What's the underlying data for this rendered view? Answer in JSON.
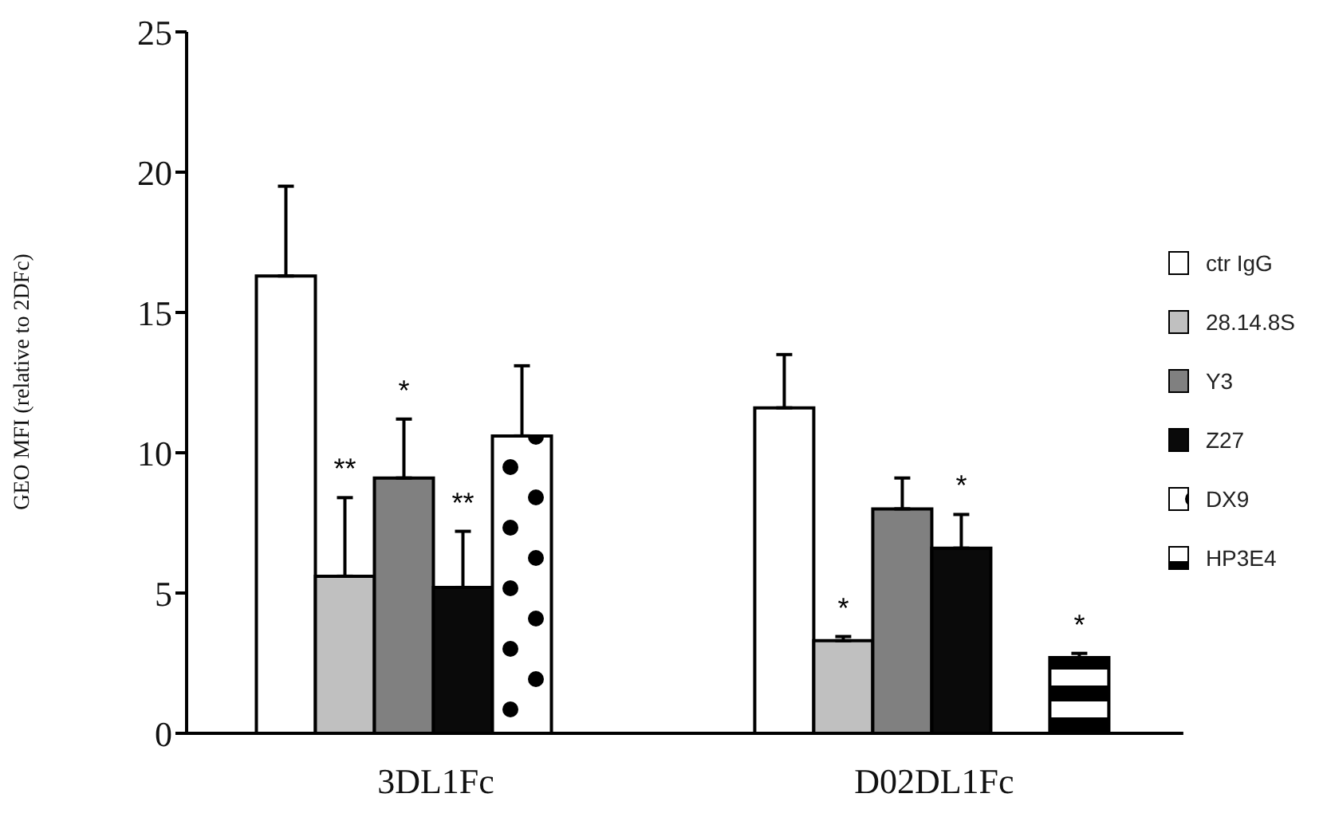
{
  "chart_data": {
    "type": "bar",
    "ylabel": "GEO MFI (relative to 2DFc)",
    "categories": [
      "3DL1Fc",
      "D02DL1Fc"
    ],
    "series": [
      {
        "name": "ctr IgG",
        "color": "#ffffff",
        "values": [
          16.3,
          11.6
        ],
        "errors": [
          [
            16.3,
            19.5
          ],
          [
            11.6,
            13.5
          ]
        ]
      },
      {
        "name": "28.14.8S",
        "color": "#c0c0c0",
        "values": [
          5.6,
          3.3
        ],
        "errors": [
          [
            5.6,
            8.4
          ],
          [
            3.3,
            3.45
          ]
        ],
        "value_labels": [
          "**",
          "*"
        ]
      },
      {
        "name": "Y3",
        "color": "#808080",
        "values": [
          9.1,
          8.0
        ],
        "errors": [
          [
            9.1,
            11.2
          ],
          [
            8.0,
            9.1
          ]
        ],
        "value_labels": [
          "*",
          null
        ]
      },
      {
        "name": "Z27",
        "color": "#0a0a0a",
        "values": [
          5.2,
          6.6
        ],
        "errors": [
          [
            5.2,
            7.2
          ],
          [
            6.6,
            7.8
          ]
        ],
        "value_labels": [
          "**",
          "*"
        ]
      },
      {
        "name": "DX9",
        "color": "#000000",
        "values": [
          10.6,
          null
        ],
        "errors": [
          [
            10.6,
            13.1
          ],
          null
        ]
      },
      {
        "name": "HP3E4",
        "color": "#000000",
        "values": [
          null,
          2.7
        ],
        "errors": [
          null,
          [
            2.7,
            2.85
          ]
        ],
        "value_labels": [
          null,
          "*"
        ]
      }
    ],
    "ylim": [
      0,
      25
    ],
    "yticks": [
      0,
      5,
      10,
      15,
      20,
      25
    ],
    "grid": false,
    "legend": "right"
  }
}
